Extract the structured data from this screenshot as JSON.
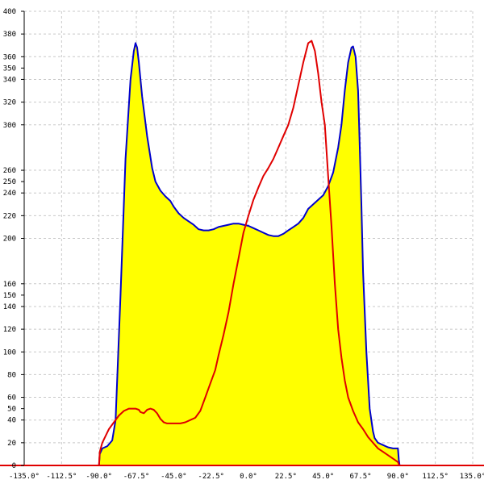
{
  "chart_data": {
    "type": "area",
    "title": "",
    "xlabel": "",
    "ylabel": "",
    "xlim": [
      -135,
      135
    ],
    "ylim": [
      0,
      400
    ],
    "grid": true,
    "x_ticks": [
      {
        "value": -135,
        "label": "-135.0°"
      },
      {
        "value": -112.5,
        "label": "-112.5°"
      },
      {
        "value": -90,
        "label": "-90.0°"
      },
      {
        "value": -67.5,
        "label": "-67.5°"
      },
      {
        "value": -45,
        "label": "-45.0°"
      },
      {
        "value": -22.5,
        "label": "-22.5°"
      },
      {
        "value": 0,
        "label": "0.0°"
      },
      {
        "value": 22.5,
        "label": "22.5°"
      },
      {
        "value": 45,
        "label": "45.0°"
      },
      {
        "value": 67.5,
        "label": "67.5°"
      },
      {
        "value": 90,
        "label": "90.0°"
      },
      {
        "value": 112.5,
        "label": "112.5°"
      },
      {
        "value": 135,
        "label": "135.0°"
      }
    ],
    "y_ticks": [
      {
        "value": 0,
        "label": "0"
      },
      {
        "value": 20,
        "label": "20"
      },
      {
        "value": 40,
        "label": "40"
      },
      {
        "value": 50,
        "label": "50"
      },
      {
        "value": 60,
        "label": "60"
      },
      {
        "value": 80,
        "label": "80"
      },
      {
        "value": 100,
        "label": "100"
      },
      {
        "value": 120,
        "label": "120"
      },
      {
        "value": 140,
        "label": "140"
      },
      {
        "value": 150,
        "label": "150"
      },
      {
        "value": 160,
        "label": "160"
      },
      {
        "value": 200,
        "label": "200"
      },
      {
        "value": 220,
        "label": "220"
      },
      {
        "value": 240,
        "label": "240"
      },
      {
        "value": 250,
        "label": "250"
      },
      {
        "value": 260,
        "label": "260"
      },
      {
        "value": 300,
        "label": "300"
      },
      {
        "value": 320,
        "label": "320"
      },
      {
        "value": 340,
        "label": "340"
      },
      {
        "value": 350,
        "label": "350"
      },
      {
        "value": 360,
        "label": "360"
      },
      {
        "value": 380,
        "label": "380"
      },
      {
        "value": 400,
        "label": "400"
      }
    ],
    "x_gridlines": [
      -135,
      -112.5,
      -90,
      -67.5,
      -45,
      -22.5,
      0,
      22.5,
      45,
      67.5,
      90,
      112.5,
      135
    ],
    "y_gridlines": [
      0,
      20,
      40,
      60,
      80,
      100,
      120,
      140,
      160,
      200,
      220,
      240,
      260,
      300,
      320,
      340,
      360,
      380,
      400
    ],
    "series": [
      {
        "color": "#0000cc",
        "fill": "#ffff00",
        "x": [
          -135,
          -90,
          -89.5,
          -88,
          -85,
          -82,
          -80,
          -77,
          -74,
          -71,
          -69,
          -68,
          -67,
          -66,
          -64,
          -61,
          -58,
          -56,
          -53,
          -50,
          -47,
          -45,
          -42,
          -39,
          -36,
          -33,
          -30,
          -27,
          -24,
          -21,
          -18,
          -15,
          -12,
          -9,
          -6,
          -3,
          0,
          3,
          6,
          9,
          12,
          15,
          18,
          21,
          24,
          27,
          30,
          33,
          36,
          39,
          42,
          45,
          48,
          51,
          54,
          56,
          58,
          60,
          62,
          63,
          64.5,
          66,
          67,
          68,
          69,
          71,
          73,
          75,
          76,
          78,
          81,
          84,
          87,
          90,
          90.5,
          91,
          135
        ],
        "y": [
          0,
          0,
          10,
          15,
          17,
          22,
          40,
          150,
          270,
          340,
          365,
          372,
          368,
          355,
          325,
          290,
          262,
          250,
          242,
          237,
          233,
          228,
          222,
          218,
          215,
          212,
          208,
          207,
          207,
          208,
          210,
          211,
          212,
          213,
          213,
          212,
          211,
          209,
          207,
          205,
          203,
          202,
          202,
          204,
          207,
          210,
          213,
          218,
          226,
          230,
          234,
          238,
          246,
          258,
          280,
          300,
          330,
          355,
          368,
          369,
          360,
          330,
          280,
          230,
          170,
          100,
          50,
          30,
          24,
          20,
          18,
          16,
          15,
          15,
          5,
          0,
          0
        ]
      },
      {
        "color": "#e00000",
        "x": [
          -135,
          -90,
          -89.5,
          -88,
          -86,
          -84,
          -81,
          -78,
          -75,
          -72,
          -70,
          -68,
          -66,
          -65,
          -63,
          -61,
          -59,
          -57,
          -55,
          -53,
          -51,
          -49,
          -47,
          -44,
          -41,
          -38,
          -35,
          -32,
          -29,
          -26,
          -23,
          -20,
          -18,
          -15,
          -12,
          -9,
          -6,
          -3,
          0,
          3,
          6,
          9,
          12,
          15,
          18,
          21,
          24,
          27,
          30,
          33,
          36,
          38,
          40,
          42,
          44,
          46,
          48,
          50,
          52,
          54,
          56,
          58,
          60,
          63,
          66,
          69,
          72,
          75,
          78,
          81,
          84,
          87,
          90,
          90.5,
          91,
          135
        ],
        "y": [
          0,
          0,
          12,
          20,
          26,
          32,
          38,
          44,
          48,
          50,
          50,
          50,
          49,
          47,
          46,
          49,
          50,
          49,
          46,
          41,
          38,
          37,
          37,
          37,
          37,
          38,
          40,
          42,
          48,
          60,
          72,
          84,
          97,
          115,
          135,
          160,
          182,
          205,
          220,
          234,
          245,
          255,
          262,
          270,
          280,
          290,
          300,
          315,
          335,
          355,
          372,
          374,
          365,
          345,
          320,
          300,
          255,
          210,
          160,
          120,
          95,
          75,
          60,
          48,
          38,
          32,
          25,
          20,
          15,
          12,
          9,
          6,
          3,
          1,
          0,
          0
        ]
      }
    ]
  }
}
